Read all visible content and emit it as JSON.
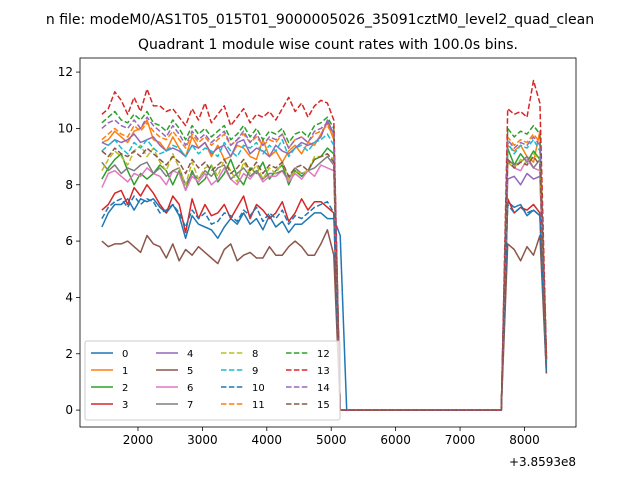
{
  "figure": {
    "suptitle": "n file: modeM0/AS1T05_015T01_9000005026_35091cztM0_level2_quad_clean"
  },
  "chart_data": {
    "type": "line",
    "title": "Quadrant 1 module wise count rates with 100.0s bins.",
    "xlabel": "",
    "ylabel": "",
    "x_offset_label": "+3.8593e8",
    "xlim": [
      1100,
      8800
    ],
    "ylim": [
      -0.6,
      12.5
    ],
    "xticks": [
      2000,
      3000,
      4000,
      5000,
      6000,
      7000,
      8000
    ],
    "yticks": [
      0,
      2,
      4,
      6,
      8,
      10,
      12
    ],
    "grid": false,
    "legend_position": "lower-left",
    "legend_columns": 4,
    "x": [
      1440,
      1540,
      1640,
      1740,
      1840,
      1940,
      2040,
      2140,
      2240,
      2340,
      2440,
      2540,
      2640,
      2740,
      2840,
      2940,
      3040,
      3140,
      3240,
      3340,
      3440,
      3540,
      3640,
      3740,
      3840,
      3940,
      4040,
      4140,
      4240,
      4340,
      4440,
      4540,
      4640,
      4740,
      4840,
      4940,
      5040,
      5140,
      5240,
      5340,
      5440,
      5540,
      5640,
      5740,
      5840,
      5940,
      6040,
      6140,
      6240,
      6340,
      6440,
      6540,
      6640,
      6740,
      6840,
      6940,
      7040,
      7140,
      7240,
      7340,
      7440,
      7540,
      7640,
      7740,
      7840,
      7940,
      8040,
      8140,
      8240,
      8340
    ],
    "series": [
      {
        "name": "0",
        "color": "#1f77b4",
        "dash": "solid",
        "values": [
          6.5,
          7,
          7.3,
          7.3,
          7.5,
          7.1,
          7.5,
          7.4,
          7.5,
          7.2,
          7,
          7.3,
          6.9,
          6.1,
          6.9,
          6.6,
          6.5,
          6.4,
          6.1,
          6.5,
          6.8,
          6.6,
          7.0,
          6.6,
          6.8,
          6.4,
          6.9,
          6.5,
          6.7,
          6.3,
          6.6,
          6.6,
          6.8,
          7.0,
          7.0,
          6.8,
          6.8,
          6.2,
          0,
          0,
          0,
          0,
          0,
          0,
          0,
          0,
          0,
          0,
          0,
          0,
          0,
          0,
          0,
          0,
          0,
          0,
          0,
          0,
          0,
          0,
          0,
          0,
          0,
          7.4,
          7.2,
          7.3,
          6.9,
          7.1,
          6.9,
          1.3
        ]
      },
      {
        "name": "1",
        "color": "#ff7f0e",
        "dash": "solid",
        "values": [
          9.5,
          9.6,
          9.9,
          9.7,
          9.5,
          9.9,
          10.0,
          10.3,
          9.6,
          9.5,
          9.2,
          9.7,
          9.3,
          9.0,
          9.7,
          9.3,
          9.5,
          9.0,
          9.4,
          8.9,
          9.0,
          9.4,
          9.3,
          9.0,
          8.9,
          9.6,
          9.0,
          9.2,
          8.8,
          9.2,
          9.4,
          9.1,
          9.5,
          9.4,
          9.8,
          10.2,
          9.6,
          0,
          0,
          0,
          0,
          0,
          0,
          0,
          0,
          0,
          0,
          0,
          0,
          0,
          0,
          0,
          0,
          0,
          0,
          0,
          0,
          0,
          0,
          0,
          0,
          0,
          0,
          9.4,
          9.2,
          9.4,
          9.0,
          8.8,
          9.9,
          1.7
        ]
      },
      {
        "name": "2",
        "color": "#2ca02c",
        "dash": "solid",
        "values": [
          8.2,
          8.6,
          8.9,
          9.1,
          8.5,
          8.0,
          8.4,
          8.2,
          8.4,
          8.7,
          8.5,
          8.0,
          8.5,
          7.8,
          8.5,
          8.0,
          8.2,
          8.7,
          8.1,
          8.4,
          8.9,
          8.3,
          8.0,
          8.6,
          8.4,
          8.8,
          8.2,
          8.5,
          8.7,
          8.0,
          8.5,
          8.3,
          8.5,
          8.9,
          9.0,
          9.3,
          9.1,
          0,
          0,
          0,
          0,
          0,
          0,
          0,
          0,
          0,
          0,
          0,
          0,
          0,
          0,
          0,
          0,
          0,
          0,
          0,
          0,
          0,
          0,
          0,
          0,
          0,
          0,
          9.3,
          8.7,
          9.1,
          8.8,
          9.2,
          8.9,
          1.8
        ]
      },
      {
        "name": "3",
        "color": "#d62728",
        "dash": "solid",
        "values": [
          7.1,
          7.3,
          7.7,
          7.8,
          7.3,
          7.9,
          7.6,
          8.0,
          7.7,
          7.3,
          7.0,
          7.6,
          7.3,
          6.3,
          7.5,
          6.8,
          7.3,
          6.9,
          7.0,
          7.3,
          6.8,
          7.2,
          7.6,
          6.8,
          7.3,
          7.1,
          6.8,
          7.0,
          7.4,
          6.7,
          7.0,
          7.5,
          7.1,
          7.4,
          7.4,
          7.2,
          7.0,
          0,
          0,
          0,
          0,
          0,
          0,
          0,
          0,
          0,
          0,
          0,
          0,
          0,
          0,
          0,
          0,
          0,
          0,
          0,
          0,
          0,
          0,
          0,
          0,
          0,
          0,
          7.5,
          7.0,
          7.2,
          7.1,
          7.3,
          7.0,
          1.5
        ]
      },
      {
        "name": "4",
        "color": "#9467bd",
        "dash": "solid",
        "values": [
          9.5,
          9.4,
          9.6,
          9.5,
          9.6,
          9.8,
          9.5,
          9.6,
          9.7,
          9.4,
          9.2,
          9.3,
          9.2,
          9.0,
          9.4,
          9.3,
          9.5,
          9.1,
          9.3,
          9.4,
          9.0,
          9.5,
          9.6,
          9.1,
          9.3,
          9.2,
          9.0,
          9.4,
          9.2,
          9.1,
          9.3,
          9.5,
          9.4,
          9.5,
          9.7,
          10.3,
          9.8,
          0,
          0,
          0,
          0,
          0,
          0,
          0,
          0,
          0,
          0,
          0,
          0,
          0,
          0,
          0,
          0,
          0,
          0,
          0,
          0,
          0,
          0,
          0,
          0,
          0,
          0,
          8.2,
          8.3,
          8.0,
          8.4,
          8.2,
          8.3,
          1.6
        ]
      },
      {
        "name": "5",
        "color": "#8c564b",
        "dash": "solid",
        "values": [
          6.0,
          5.8,
          5.9,
          5.9,
          6.0,
          5.8,
          5.6,
          6.2,
          5.9,
          5.8,
          5.4,
          5.9,
          5.3,
          5.7,
          5.5,
          5.8,
          5.6,
          5.4,
          5.2,
          5.7,
          5.9,
          5.3,
          5.5,
          5.6,
          5.4,
          5.4,
          5.8,
          5.5,
          5.5,
          5.8,
          6.0,
          5.8,
          5.5,
          5.5,
          5.9,
          6.4,
          5.5,
          0,
          0,
          0,
          0,
          0,
          0,
          0,
          0,
          0,
          0,
          0,
          0,
          0,
          0,
          0,
          0,
          0,
          0,
          0,
          0,
          0,
          0,
          0,
          0,
          0,
          0,
          5.9,
          5.7,
          5.3,
          5.8,
          5.5,
          6.2,
          1.3
        ]
      },
      {
        "name": "6",
        "color": "#e377c2",
        "dash": "solid",
        "values": [
          7.9,
          8.4,
          8.5,
          8.3,
          8.1,
          8.4,
          8.3,
          8.6,
          8.4,
          8.3,
          8.0,
          8.5,
          8.4,
          7.8,
          8.3,
          8.1,
          8.4,
          8.0,
          8.2,
          8.6,
          8.2,
          8.0,
          8.4,
          8.2,
          8.5,
          8.1,
          8.3,
          8.3,
          8.5,
          8.1,
          8.4,
          8.2,
          8.5,
          8.3,
          8.7,
          8.6,
          8.5,
          0,
          0,
          0,
          0,
          0,
          0,
          0,
          0,
          0,
          0,
          0,
          0,
          0,
          0,
          0,
          0,
          0,
          0,
          0,
          0,
          0,
          0,
          0,
          0,
          0,
          0,
          8.8,
          8.6,
          8.5,
          8.9,
          8.6,
          8.5,
          1.8
        ]
      },
      {
        "name": "7",
        "color": "#7f7f7f",
        "dash": "solid",
        "values": [
          8.8,
          8.5,
          8.7,
          8.4,
          8.6,
          8.5,
          8.7,
          8.8,
          8.4,
          8.6,
          8.3,
          8.5,
          8.6,
          8.0,
          8.4,
          8.2,
          8.5,
          8.3,
          8.6,
          8.7,
          8.2,
          8.4,
          8.6,
          8.3,
          8.5,
          8.2,
          8.4,
          8.4,
          8.5,
          8.2,
          8.6,
          8.4,
          8.5,
          8.6,
          8.8,
          9.0,
          8.7,
          0,
          0,
          0,
          0,
          0,
          0,
          0,
          0,
          0,
          0,
          0,
          0,
          0,
          0,
          0,
          0,
          0,
          0,
          0,
          0,
          0,
          0,
          0,
          0,
          0,
          0,
          8.9,
          8.7,
          8.8,
          9.0,
          8.6,
          8.9,
          1.9
        ]
      },
      {
        "name": "8",
        "color": "#bcbd22",
        "dash": "dashed",
        "values": [
          8.5,
          8.9,
          9.2,
          9.0,
          8.7,
          9.2,
          9.4,
          9.0,
          9.3,
          8.8,
          8.5,
          9.1,
          8.6,
          8.0,
          8.8,
          8.2,
          8.6,
          8.7,
          8.3,
          8.9,
          8.5,
          8.1,
          8.8,
          8.4,
          8.7,
          8.2,
          8.6,
          8.4,
          8.8,
          8.2,
          8.5,
          8.4,
          8.5,
          9.0,
          9.0,
          9.1,
          8.9,
          0,
          0,
          0,
          0,
          0,
          0,
          0,
          0,
          0,
          0,
          0,
          0,
          0,
          0,
          0,
          0,
          0,
          0,
          0,
          0,
          0,
          0,
          0,
          0,
          0,
          0,
          8.8,
          8.6,
          8.9,
          8.7,
          9.1,
          8.9,
          1.7
        ]
      },
      {
        "name": "9",
        "color": "#17becf",
        "dash": "dashed",
        "values": [
          9.2,
          9.4,
          9.6,
          9.3,
          9.1,
          9.5,
          9.3,
          9.6,
          9.3,
          9.1,
          9.2,
          9.4,
          9.3,
          9.0,
          9.4,
          9.1,
          9.3,
          9.2,
          9.0,
          9.5,
          9.2,
          9.0,
          9.4,
          9.3,
          9.5,
          9.1,
          9.4,
          9.2,
          9.6,
          9.0,
          9.3,
          9.4,
          9.2,
          9.5,
          9.6,
          9.8,
          9.4,
          0,
          0,
          0,
          0,
          0,
          0,
          0,
          0,
          0,
          0,
          0,
          0,
          0,
          0,
          0,
          0,
          0,
          0,
          0,
          0,
          0,
          0,
          0,
          0,
          0,
          0,
          9.5,
          9.1,
          9.4,
          9.3,
          9.6,
          9.2,
          1.8
        ]
      },
      {
        "name": "10",
        "color": "#1f77b4",
        "dash": "dashed",
        "values": [
          6.8,
          7.2,
          7.4,
          7.5,
          7.2,
          7.6,
          7.3,
          7.5,
          7.4,
          7.0,
          7.1,
          7.3,
          7.0,
          6.5,
          7.1,
          6.8,
          7.0,
          6.6,
          6.7,
          7.0,
          6.9,
          6.7,
          7.1,
          6.9,
          7.2,
          6.7,
          7.0,
          6.8,
          7.1,
          6.6,
          6.9,
          6.8,
          7.0,
          7.2,
          7.3,
          7.4,
          7.0,
          0,
          0,
          0,
          0,
          0,
          0,
          0,
          0,
          0,
          0,
          0,
          0,
          0,
          0,
          0,
          0,
          0,
          0,
          0,
          0,
          0,
          0,
          0,
          0,
          0,
          0,
          7.3,
          7.0,
          7.2,
          7.0,
          7.1,
          6.9,
          1.4
        ]
      },
      {
        "name": "11",
        "color": "#ff7f0e",
        "dash": "dashed",
        "values": [
          9.6,
          9.8,
          10.0,
          9.8,
          9.7,
          10.1,
          9.9,
          10.2,
          9.9,
          9.7,
          9.6,
          9.9,
          9.6,
          9.3,
          9.8,
          9.5,
          9.7,
          9.4,
          9.6,
          9.8,
          9.4,
          9.6,
          9.8,
          9.5,
          9.7,
          9.4,
          9.6,
          9.5,
          9.8,
          9.3,
          9.6,
          9.7,
          9.5,
          9.8,
          9.9,
          10.1,
          9.7,
          0,
          0,
          0,
          0,
          0,
          0,
          0,
          0,
          0,
          0,
          0,
          0,
          0,
          0,
          0,
          0,
          0,
          0,
          0,
          0,
          0,
          0,
          0,
          0,
          0,
          0,
          9.7,
          9.4,
          9.6,
          9.5,
          9.8,
          9.5,
          1.8
        ]
      },
      {
        "name": "12",
        "color": "#2ca02c",
        "dash": "dashed",
        "values": [
          10.2,
          10.4,
          10.6,
          10.3,
          10.2,
          10.5,
          10.3,
          10.6,
          10.2,
          10.1,
          9.9,
          10.3,
          10.0,
          9.6,
          10.1,
          9.8,
          10.0,
          9.7,
          9.9,
          10.1,
          9.6,
          9.8,
          10.1,
          9.7,
          10.0,
          9.6,
          9.9,
          9.8,
          10.0,
          9.5,
          9.8,
          9.9,
          9.7,
          10.1,
          10.2,
          10.4,
          10.0,
          0,
          0,
          0,
          0,
          0,
          0,
          0,
          0,
          0,
          0,
          0,
          0,
          0,
          0,
          0,
          0,
          0,
          0,
          0,
          0,
          0,
          0,
          0,
          0,
          0,
          0,
          10.0,
          9.7,
          9.9,
          9.8,
          10.1,
          9.8,
          1.9
        ]
      },
      {
        "name": "13",
        "color": "#d62728",
        "dash": "dashed",
        "values": [
          10.5,
          10.7,
          11.3,
          11.0,
          10.5,
          11.1,
          10.6,
          11.4,
          10.8,
          10.8,
          10.6,
          10.7,
          10.4,
          10.1,
          10.7,
          10.3,
          10.9,
          10.2,
          10.5,
          10.8,
          10.1,
          10.4,
          10.7,
          10.2,
          10.5,
          10.4,
          10.6,
          10.3,
          10.7,
          11.1,
          10.6,
          10.9,
          10.4,
          10.8,
          11.0,
          10.9,
          10.3,
          0,
          0,
          0,
          0,
          0,
          0,
          0,
          0,
          0,
          0,
          0,
          0,
          0,
          0,
          0,
          0,
          0,
          0,
          0,
          0,
          0,
          0,
          0,
          0,
          0,
          0,
          10.7,
          10.5,
          10.6,
          10.4,
          11.7,
          10.9,
          2.0
        ]
      },
      {
        "name": "14",
        "color": "#9467bd",
        "dash": "dashed",
        "values": [
          10.0,
          10.2,
          10.3,
          10.1,
          10.0,
          10.3,
          10.0,
          10.4,
          10.1,
          9.9,
          9.7,
          10.1,
          9.8,
          9.4,
          9.9,
          9.6,
          9.8,
          9.5,
          9.7,
          9.9,
          9.4,
          9.6,
          9.9,
          9.5,
          9.8,
          9.4,
          9.7,
          9.6,
          9.8,
          9.3,
          9.6,
          9.7,
          9.5,
          9.9,
          10.0,
          10.2,
          9.8,
          0,
          0,
          0,
          0,
          0,
          0,
          0,
          0,
          0,
          0,
          0,
          0,
          0,
          0,
          0,
          0,
          0,
          0,
          0,
          0,
          0,
          0,
          0,
          0,
          0,
          0,
          9.6,
          9.3,
          9.5,
          9.4,
          9.7,
          9.4,
          1.8
        ]
      },
      {
        "name": "15",
        "color": "#8c564b",
        "dash": "dashed",
        "values": [
          9.2,
          9.0,
          9.3,
          9.1,
          9.0,
          9.2,
          9.0,
          9.3,
          9.1,
          8.9,
          8.7,
          9.0,
          8.8,
          8.4,
          8.9,
          8.6,
          8.8,
          8.5,
          8.7,
          8.9,
          8.4,
          8.6,
          8.9,
          8.5,
          8.8,
          8.4,
          8.7,
          8.6,
          8.8,
          8.3,
          8.6,
          8.7,
          8.5,
          8.9,
          9.0,
          9.1,
          8.8,
          0,
          0,
          0,
          0,
          0,
          0,
          0,
          0,
          0,
          0,
          0,
          0,
          0,
          0,
          0,
          0,
          0,
          0,
          0,
          0,
          0,
          0,
          0,
          0,
          0,
          0,
          8.9,
          8.6,
          8.8,
          8.7,
          9.0,
          8.7,
          1.8
        ]
      }
    ]
  }
}
